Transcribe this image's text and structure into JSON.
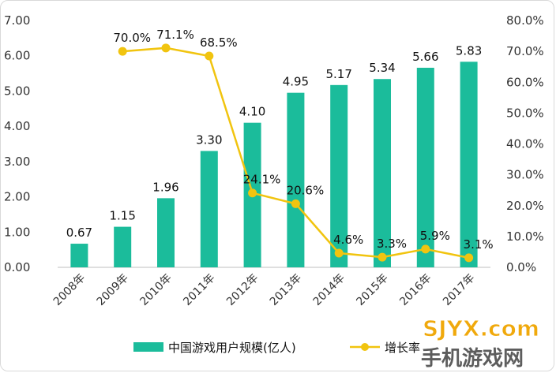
{
  "chart_data": {
    "type": "bar",
    "categories": [
      "2008年",
      "2009年",
      "2010年",
      "2011年",
      "2012年",
      "2013年",
      "2014年",
      "2015年",
      "2016年",
      "2017年"
    ],
    "series": [
      {
        "name": "中国游戏用户规模(亿人)",
        "type": "bar",
        "axis": "left",
        "color": "#1bbc9b",
        "values": [
          0.67,
          1.15,
          1.96,
          3.3,
          4.1,
          4.95,
          5.17,
          5.34,
          5.66,
          5.83
        ],
        "labels": [
          "0.67",
          "1.15",
          "1.96",
          "3.30",
          "4.10",
          "4.95",
          "5.17",
          "5.34",
          "5.66",
          "5.83"
        ]
      },
      {
        "name": "增长率",
        "type": "line",
        "axis": "right",
        "color": "#f1c40f",
        "x": [
          "2009年",
          "2010年",
          "2011年",
          "2012年",
          "2013年",
          "2014年",
          "2015年",
          "2016年",
          "2017年"
        ],
        "values": [
          70.0,
          71.1,
          68.5,
          24.1,
          20.6,
          4.6,
          3.3,
          5.9,
          3.1
        ],
        "labels": [
          "70.0%",
          "71.1%",
          "68.5%",
          "24.1%",
          "20.6%",
          "4.6%",
          "3.3%",
          "5.9%",
          "3.1%"
        ]
      }
    ],
    "y_left": {
      "ylim": [
        0,
        7
      ],
      "ticks": [
        "0.00",
        "1.00",
        "2.00",
        "3.00",
        "4.00",
        "5.00",
        "6.00",
        "7.00"
      ]
    },
    "y_right": {
      "ylim": [
        0,
        80
      ],
      "ticks": [
        "0.0%",
        "10.0%",
        "20.0%",
        "30.0%",
        "40.0%",
        "50.0%",
        "60.0%",
        "70.0%",
        "80.0%"
      ]
    },
    "grid": false,
    "legend": "bottom"
  },
  "watermark": {
    "brand": "SJYX.com",
    "subtitle": "手机游戏网"
  }
}
